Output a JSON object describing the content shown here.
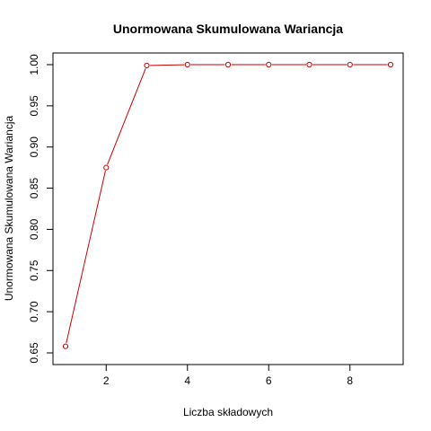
{
  "chart_data": {
    "type": "line",
    "title": "Unormowana Skumulowana Wariancja",
    "xlabel": "Liczba składowych",
    "ylabel": "Unormowana Skumulowana Wariancja",
    "x": [
      1,
      2,
      3,
      4,
      5,
      6,
      7,
      8,
      9
    ],
    "values": [
      0.658,
      0.875,
      0.999,
      1.0,
      1.0,
      1.0,
      1.0,
      1.0,
      1.0
    ],
    "xlim": [
      1,
      9
    ],
    "ylim": [
      0.65,
      1.0
    ],
    "xticks": [
      2,
      4,
      6,
      8
    ],
    "xtick_labels": [
      "2",
      "4",
      "6",
      "8"
    ],
    "yticks": [
      0.65,
      0.7,
      0.75,
      0.8,
      0.85,
      0.9,
      0.95,
      1.0
    ],
    "ytick_labels": [
      "0.65",
      "0.70",
      "0.75",
      "0.80",
      "0.85",
      "0.90",
      "0.95",
      "1.00"
    ],
    "line_color": "#cc0000",
    "marker": "open-circle",
    "grid": false,
    "legend": "none"
  }
}
